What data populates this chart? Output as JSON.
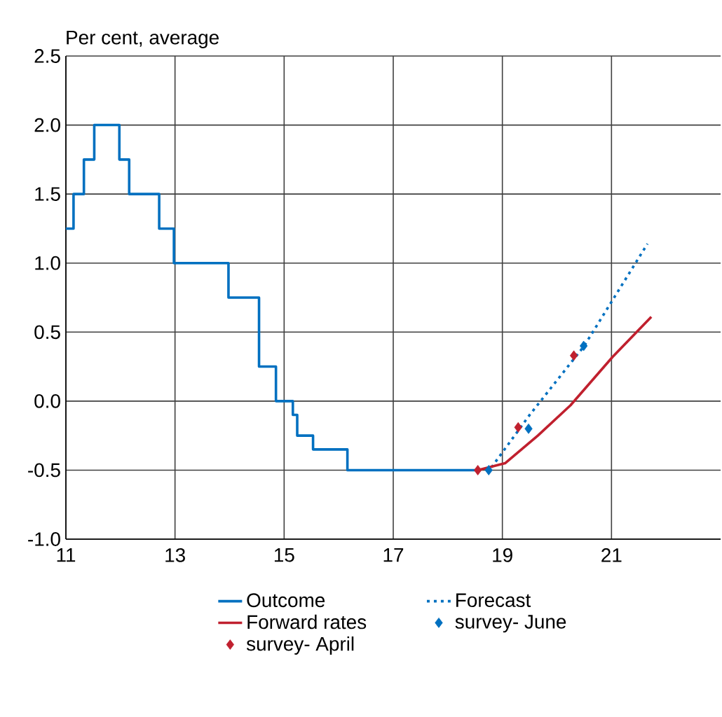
{
  "chart_data": {
    "type": "line",
    "ylabel": "Per cent, average",
    "xlim": [
      11,
      23
    ],
    "ylim": [
      -1.0,
      2.5
    ],
    "xticks": [
      11,
      13,
      15,
      17,
      19,
      21
    ],
    "yticks": [
      {
        "value": -1.0,
        "label": "-1.0"
      },
      {
        "value": -0.5,
        "label": "-0.5"
      },
      {
        "value": 0.0,
        "label": "0.0"
      },
      {
        "value": 0.5,
        "label": "0.5"
      },
      {
        "value": 1.0,
        "label": "1.0"
      },
      {
        "value": 1.5,
        "label": "1.5"
      },
      {
        "value": 2.0,
        "label": "2.0"
      },
      {
        "value": 2.5,
        "label": "2.5"
      }
    ],
    "grid": true,
    "legend": "bottom",
    "series": [
      {
        "name": "Outcome",
        "type": "step",
        "color": "#0070c0",
        "line_style": "solid",
        "x": [
          11.0,
          11.14,
          11.33,
          11.52,
          11.98,
          12.16,
          12.71,
          12.98,
          13.98,
          14.54,
          14.85,
          15.16,
          15.24,
          15.53,
          16.16,
          18.55
        ],
        "values": [
          1.25,
          1.5,
          1.75,
          2.0,
          1.75,
          1.5,
          1.25,
          1.0,
          0.75,
          0.25,
          0.0,
          -0.1,
          -0.25,
          -0.35,
          -0.5,
          -0.5
        ]
      },
      {
        "name": "Forecast",
        "color": "#0070c0",
        "line_style": "dotted",
        "x": [
          18.55,
          18.8,
          19.5,
          20.5,
          21.66
        ],
        "values": [
          -0.5,
          -0.48,
          -0.1,
          0.4,
          1.14
        ]
      },
      {
        "name": "Forward rates",
        "color": "#c0202e",
        "line_style": "solid",
        "x": [
          18.55,
          19.05,
          19.65,
          20.25,
          21.02,
          21.73
        ],
        "values": [
          -0.5,
          -0.45,
          -0.25,
          -0.03,
          0.32,
          0.61
        ]
      },
      {
        "name": "survey- June",
        "type": "scatter",
        "color": "#0070c0",
        "marker": "diamond",
        "x": [
          18.75,
          19.48,
          20.49
        ],
        "values": [
          -0.5,
          -0.2,
          0.4
        ]
      },
      {
        "name": "survey- April",
        "type": "scatter",
        "color": "#c0202e",
        "marker": "diamond",
        "x": [
          18.55,
          19.29,
          20.31
        ],
        "values": [
          -0.5,
          -0.19,
          0.33
        ]
      }
    ]
  }
}
